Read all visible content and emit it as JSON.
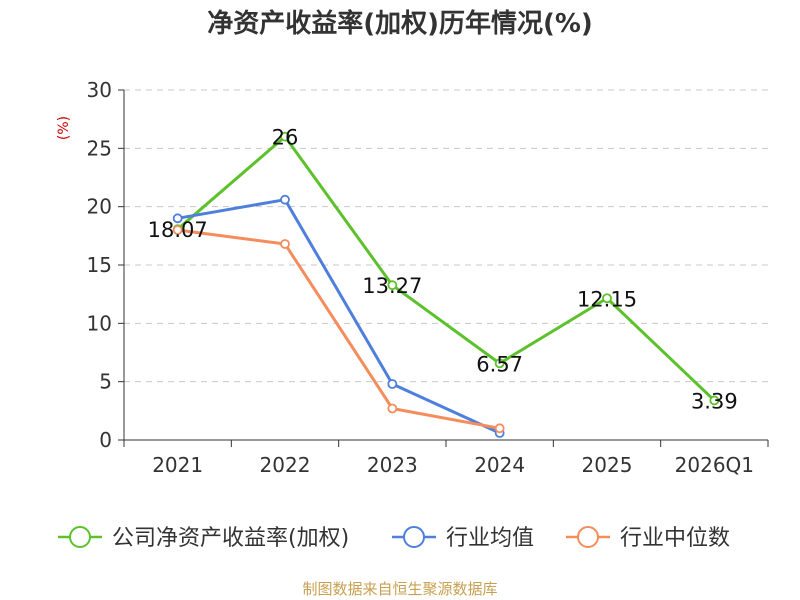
{
  "chart_data": {
    "type": "line",
    "title": "净资产收益率(加权)历年情况(%)",
    "ylabel": "(%)",
    "ylim": [
      0,
      30
    ],
    "yticks": [
      "0",
      "5",
      "10",
      "15",
      "20",
      "25",
      "30"
    ],
    "categories": [
      "2021",
      "2022",
      "2023",
      "2024",
      "2025",
      "2026Q1"
    ],
    "series": [
      {
        "name": "公司净资产收益率(加权)",
        "color": "#5cc12b",
        "values": [
          18.07,
          26,
          13.27,
          6.57,
          12.15,
          3.39
        ],
        "labels": [
          "18.07",
          "26",
          "13.27",
          "6.57",
          "12.15",
          "3.39"
        ]
      },
      {
        "name": "行业均值",
        "color": "#4e7fdc",
        "values": [
          19.0,
          20.6,
          4.8,
          0.6,
          null,
          null
        ]
      },
      {
        "name": "行业中位数",
        "color": "#f58c5c",
        "values": [
          18.0,
          16.8,
          2.7,
          1.0,
          null,
          null
        ]
      }
    ],
    "grid": true,
    "legend": "bottom"
  },
  "source": "制图数据来自恒生聚源数据库"
}
